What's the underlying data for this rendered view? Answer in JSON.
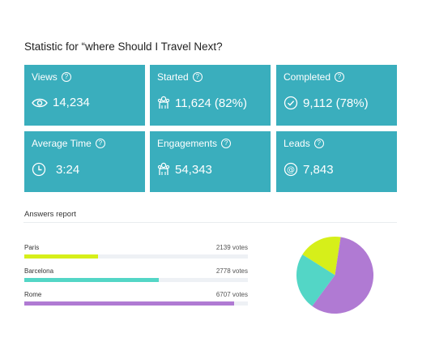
{
  "title": "Statistic for “where Should I Travel Next?",
  "cards": [
    {
      "label": "Views",
      "value": "14,234",
      "icon": "eye-icon"
    },
    {
      "label": "Started",
      "value": "11,624 (82%)",
      "icon": "people-icon"
    },
    {
      "label": "Completed",
      "value": "9,112 (78%)",
      "icon": "check-circle-icon"
    },
    {
      "label": "Average Time",
      "value": "3:24",
      "icon": "clock-icon"
    },
    {
      "label": "Engagements",
      "value": "54,343",
      "icon": "people-icon"
    },
    {
      "label": "Leads",
      "value": "7,843",
      "icon": "at-icon"
    }
  ],
  "answers_report": {
    "title": "Answers report",
    "items": [
      {
        "label": "Paris",
        "votes_text": "2139 votes",
        "votes": 2139,
        "color": "#d6ef1a",
        "fill_fraction": 0.33
      },
      {
        "label": "Barcelona",
        "votes_text": "2778 votes",
        "votes": 2778,
        "color": "#53d6c6",
        "fill_fraction": 0.6
      },
      {
        "label": "Rome",
        "votes_text": "6707 votes",
        "votes": 6707,
        "color": "#b07ad3",
        "fill_fraction": 0.94
      }
    ]
  },
  "chart_data": {
    "type": "pie",
    "categories": [
      "Paris",
      "Barcelona",
      "Rome"
    ],
    "values": [
      2139,
      2778,
      6707
    ],
    "colors": [
      "#d6ef1a",
      "#53d6c6",
      "#b07ad3"
    ]
  }
}
